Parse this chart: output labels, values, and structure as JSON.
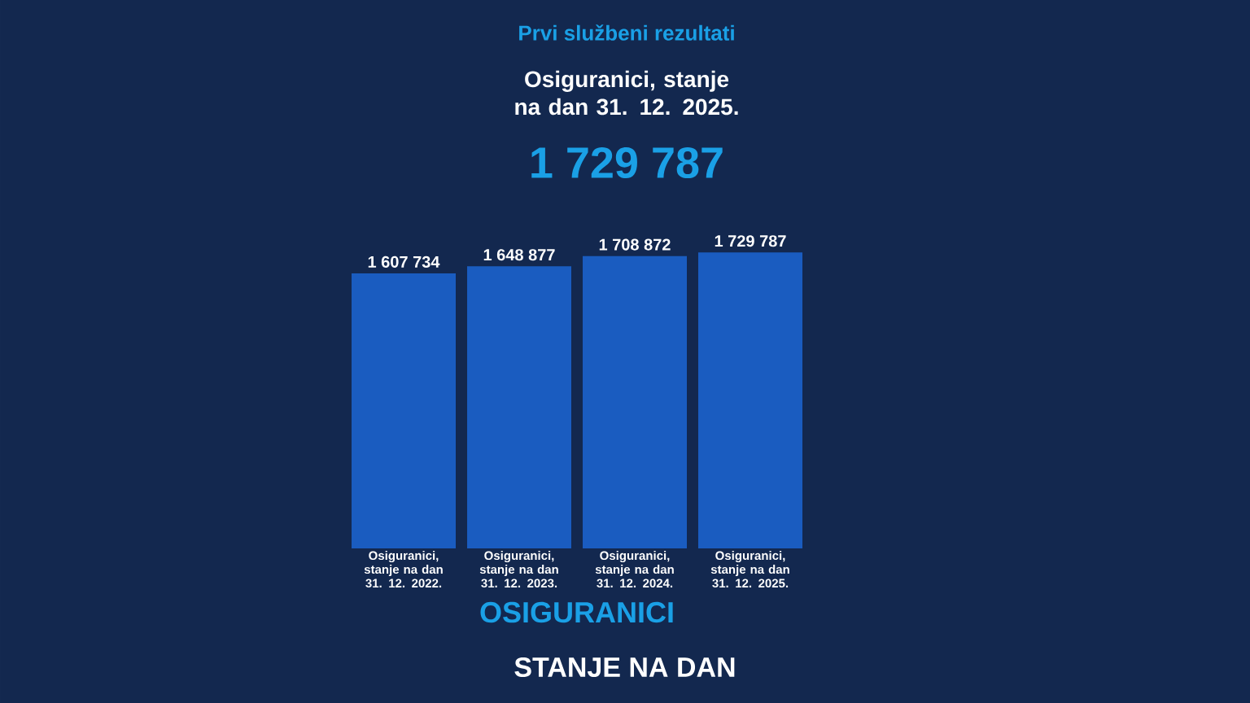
{
  "chart_data": {
    "type": "bar",
    "title": "Prvi službeni rezultati",
    "subtitle": "Osiguranici, stanje na dan 31. 12. 2025.",
    "categories": [
      "Osiguranici, stanje na dan 31. 12. 2022.",
      "Osiguranici, stanje na dan 31. 12. 2023.",
      "Osiguranici, stanje na dan 31. 12. 2024.",
      "Osiguranici, stanje na dan 31. 12. 2025."
    ],
    "values": [
      1607734,
      1648877,
      1708872,
      1729787
    ],
    "value_labels": [
      "1 607 734",
      "1 648 877",
      "1 708 872",
      "1 729 787"
    ],
    "color": "#1a5cc0",
    "tick_labels": "x",
    "xlabel": "OSIGURANICI",
    "annotations": [
      "1 729 787",
      "STANJE NA DAN"
    ]
  }
}
